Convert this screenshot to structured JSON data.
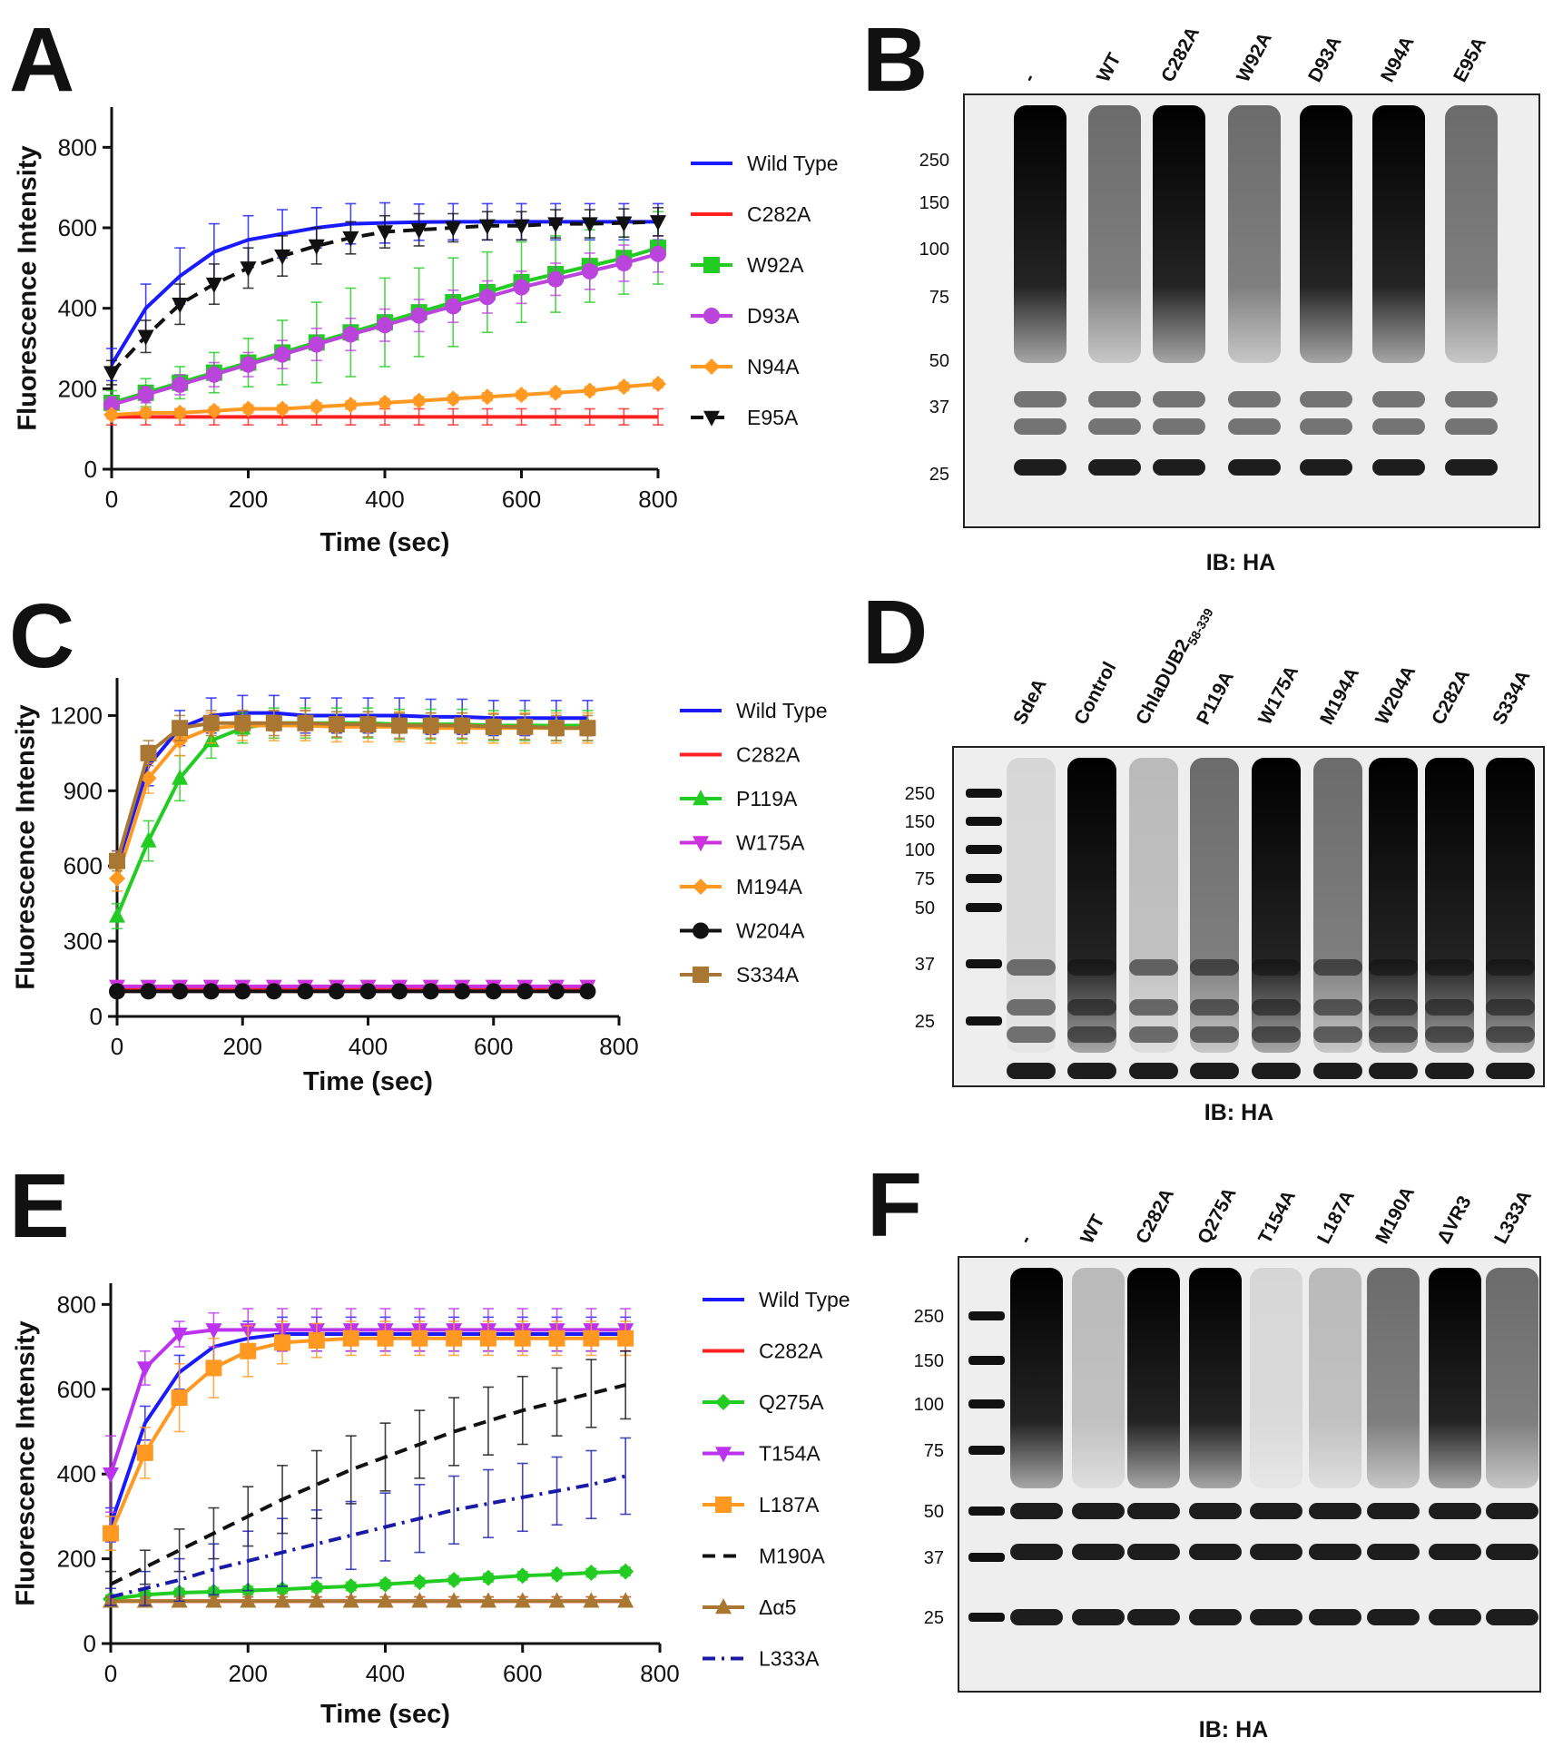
{
  "chart_data": [
    {
      "type": "line",
      "panel": "A",
      "y_label": "Fluorescence Intensity",
      "x_label": "Time (sec)",
      "x": [
        0,
        50,
        100,
        150,
        200,
        250,
        300,
        350,
        400,
        450,
        500,
        550,
        600,
        650,
        700,
        750,
        800
      ],
      "xlim": [
        0,
        800
      ],
      "xticks": [
        0,
        200,
        400,
        600,
        800
      ],
      "ylim": [
        0,
        900
      ],
      "yticks": [
        0,
        200,
        400,
        600,
        800
      ],
      "series": [
        {
          "name": "Wild Type",
          "color": "#1a1aff",
          "marker": "none",
          "dash": "solid",
          "values": [
            260,
            400,
            480,
            540,
            570,
            585,
            600,
            610,
            612,
            614,
            615,
            615,
            615,
            615,
            615,
            615,
            615
          ],
          "errors": [
            40,
            60,
            70,
            70,
            60,
            60,
            50,
            50,
            50,
            45,
            45,
            45,
            45,
            45,
            45,
            45,
            45
          ]
        },
        {
          "name": "C282A",
          "color": "#ff2020",
          "marker": "none",
          "dash": "solid",
          "values": [
            130,
            130,
            130,
            130,
            130,
            130,
            130,
            130,
            130,
            130,
            130,
            130,
            130,
            130,
            130,
            130,
            130
          ],
          "errors": [
            20,
            20,
            20,
            20,
            20,
            20,
            20,
            20,
            20,
            20,
            20,
            20,
            20,
            20,
            20,
            20,
            20
          ]
        },
        {
          "name": "W92A",
          "color": "#22cc22",
          "marker": "square",
          "dash": "solid",
          "values": [
            165,
            190,
            215,
            240,
            265,
            290,
            315,
            340,
            365,
            390,
            415,
            440,
            465,
            485,
            505,
            525,
            550
          ],
          "errors": [
            30,
            35,
            40,
            50,
            60,
            80,
            100,
            110,
            110,
            110,
            110,
            100,
            100,
            95,
            90,
            90,
            90
          ]
        },
        {
          "name": "D93A",
          "color": "#bb44dd",
          "marker": "circle",
          "dash": "solid",
          "values": [
            160,
            185,
            210,
            235,
            260,
            285,
            310,
            335,
            358,
            382,
            405,
            428,
            452,
            472,
            492,
            512,
            535
          ],
          "errors": [
            20,
            20,
            25,
            30,
            30,
            35,
            40,
            40,
            40,
            40,
            40,
            40,
            40,
            40,
            45,
            45,
            45
          ]
        },
        {
          "name": "N94A",
          "color": "#ff9922",
          "marker": "diamond",
          "dash": "solid",
          "values": [
            135,
            140,
            140,
            145,
            150,
            150,
            155,
            160,
            165,
            170,
            175,
            180,
            185,
            190,
            195,
            205,
            212
          ],
          "errors": [
            10,
            10,
            10,
            10,
            10,
            10,
            10,
            10,
            10,
            10,
            10,
            10,
            10,
            10,
            10,
            10,
            10
          ]
        },
        {
          "name": "E95A",
          "color": "#111111",
          "marker": "triangle-down",
          "dash": "dashed",
          "values": [
            240,
            330,
            410,
            460,
            500,
            530,
            555,
            575,
            590,
            595,
            600,
            605,
            605,
            610,
            610,
            612,
            615
          ],
          "errors": [
            30,
            40,
            50,
            50,
            50,
            50,
            45,
            40,
            40,
            40,
            35,
            35,
            35,
            35,
            35,
            35,
            35
          ]
        }
      ]
    },
    {
      "type": "line",
      "panel": "C",
      "y_label": "Fluorescence Intensity",
      "x_label": "Time (sec)",
      "x": [
        0,
        50,
        100,
        150,
        200,
        250,
        300,
        350,
        400,
        450,
        500,
        550,
        600,
        650,
        700,
        750
      ],
      "xlim": [
        0,
        800
      ],
      "xticks": [
        0,
        200,
        400,
        600,
        800
      ],
      "ylim": [
        0,
        1350
      ],
      "yticks": [
        0,
        300,
        600,
        900,
        1200
      ],
      "series": [
        {
          "name": "Wild Type",
          "color": "#1a1aff",
          "marker": "none",
          "dash": "solid",
          "values": [
            600,
            1000,
            1150,
            1200,
            1210,
            1210,
            1200,
            1200,
            1200,
            1200,
            1195,
            1195,
            1190,
            1190,
            1190,
            1190
          ],
          "errors": [
            60,
            80,
            70,
            70,
            70,
            70,
            70,
            70,
            70,
            70,
            70,
            70,
            70,
            70,
            70,
            70
          ]
        },
        {
          "name": "C282A",
          "color": "#ff2020",
          "marker": "none",
          "dash": "solid",
          "values": [
            110,
            110,
            110,
            110,
            110,
            110,
            110,
            110,
            110,
            110,
            110,
            110,
            110,
            110,
            110,
            110
          ],
          "errors": [
            15,
            15,
            15,
            15,
            15,
            15,
            15,
            15,
            15,
            15,
            15,
            15,
            15,
            15,
            15,
            15
          ]
        },
        {
          "name": "P119A",
          "color": "#22cc22",
          "marker": "triangle-up",
          "dash": "solid",
          "values": [
            400,
            700,
            950,
            1100,
            1150,
            1170,
            1170,
            1170,
            1170,
            1165,
            1165,
            1165,
            1160,
            1160,
            1160,
            1160
          ],
          "errors": [
            50,
            80,
            90,
            70,
            60,
            60,
            60,
            60,
            60,
            60,
            60,
            60,
            60,
            60,
            60,
            60
          ]
        },
        {
          "name": "W175A",
          "color": "#cc33dd",
          "marker": "triangle-down",
          "dash": "solid",
          "values": [
            120,
            120,
            120,
            120,
            120,
            120,
            120,
            120,
            120,
            120,
            120,
            120,
            120,
            120,
            120,
            120
          ],
          "errors": [
            15,
            15,
            15,
            15,
            15,
            15,
            15,
            15,
            15,
            15,
            15,
            15,
            15,
            15,
            15,
            15
          ]
        },
        {
          "name": "M194A",
          "color": "#ff9922",
          "marker": "diamond",
          "dash": "solid",
          "values": [
            550,
            950,
            1100,
            1150,
            1160,
            1160,
            1160,
            1155,
            1155,
            1155,
            1150,
            1150,
            1150,
            1150,
            1150,
            1150
          ],
          "errors": [
            50,
            60,
            60,
            60,
            60,
            60,
            60,
            60,
            60,
            60,
            60,
            60,
            60,
            60,
            60,
            60
          ]
        },
        {
          "name": "W204A",
          "color": "#111111",
          "marker": "circle",
          "dash": "solid",
          "values": [
            100,
            100,
            100,
            100,
            100,
            100,
            100,
            100,
            100,
            100,
            100,
            100,
            100,
            100,
            100,
            100
          ],
          "errors": [
            10,
            10,
            10,
            10,
            10,
            10,
            10,
            10,
            10,
            10,
            10,
            10,
            10,
            10,
            10,
            10
          ]
        },
        {
          "name": "S334A",
          "color": "#aa7733",
          "marker": "square",
          "dash": "solid",
          "values": [
            620,
            1050,
            1150,
            1170,
            1170,
            1170,
            1170,
            1165,
            1165,
            1160,
            1160,
            1160,
            1155,
            1155,
            1150,
            1150
          ],
          "errors": [
            40,
            50,
            50,
            50,
            50,
            50,
            50,
            50,
            50,
            50,
            50,
            50,
            50,
            50,
            50,
            50
          ]
        }
      ]
    },
    {
      "type": "line",
      "panel": "E",
      "y_label": "Fluorescence Intensity",
      "x_label": "Time (sec)",
      "x": [
        0,
        50,
        100,
        150,
        200,
        250,
        300,
        350,
        400,
        450,
        500,
        550,
        600,
        650,
        700,
        750
      ],
      "xlim": [
        0,
        800
      ],
      "xticks": [
        0,
        200,
        400,
        600,
        800
      ],
      "ylim": [
        0,
        850
      ],
      "yticks": [
        0,
        200,
        400,
        600,
        800
      ],
      "series": [
        {
          "name": "Wild Type",
          "color": "#1a1aff",
          "marker": "none",
          "dash": "solid",
          "values": [
            280,
            520,
            640,
            700,
            720,
            730,
            730,
            730,
            730,
            730,
            730,
            730,
            730,
            730,
            730,
            730
          ],
          "errors": [
            40,
            40,
            40,
            40,
            40,
            40,
            40,
            40,
            40,
            40,
            40,
            40,
            40,
            40,
            40,
            40
          ]
        },
        {
          "name": "C282A",
          "color": "#ff2020",
          "marker": "none",
          "dash": "solid",
          "values": [
            100,
            100,
            100,
            100,
            100,
            100,
            100,
            100,
            100,
            100,
            100,
            100,
            100,
            100,
            100,
            100
          ],
          "errors": [
            10,
            10,
            10,
            10,
            10,
            10,
            10,
            10,
            10,
            10,
            10,
            10,
            10,
            10,
            10,
            10
          ]
        },
        {
          "name": "Q275A",
          "color": "#22cc22",
          "marker": "diamond",
          "dash": "solid",
          "values": [
            105,
            115,
            120,
            122,
            125,
            128,
            132,
            135,
            140,
            145,
            150,
            155,
            160,
            163,
            167,
            170
          ],
          "errors": [
            10,
            10,
            10,
            10,
            10,
            10,
            10,
            10,
            10,
            10,
            10,
            10,
            10,
            10,
            10,
            10
          ]
        },
        {
          "name": "T154A",
          "color": "#bb33ee",
          "marker": "triangle-down",
          "dash": "solid",
          "values": [
            400,
            650,
            730,
            740,
            740,
            740,
            740,
            740,
            740,
            740,
            740,
            740,
            740,
            740,
            740,
            740
          ],
          "errors": [
            90,
            40,
            30,
            40,
            50,
            50,
            50,
            50,
            50,
            50,
            50,
            50,
            50,
            50,
            50,
            50
          ]
        },
        {
          "name": "L187A",
          "color": "#ff9922",
          "marker": "square",
          "dash": "solid",
          "values": [
            260,
            450,
            580,
            650,
            690,
            710,
            715,
            720,
            720,
            720,
            720,
            720,
            720,
            720,
            720,
            720
          ],
          "errors": [
            40,
            60,
            80,
            70,
            60,
            50,
            40,
            40,
            40,
            40,
            40,
            40,
            40,
            40,
            40,
            40
          ]
        },
        {
          "name": "M190A",
          "color": "#111111",
          "marker": "none",
          "dash": "dashed",
          "values": [
            140,
            180,
            220,
            260,
            300,
            340,
            375,
            410,
            440,
            470,
            500,
            525,
            550,
            570,
            590,
            610
          ],
          "errors": [
            30,
            40,
            50,
            60,
            70,
            80,
            80,
            80,
            80,
            80,
            80,
            80,
            80,
            80,
            80,
            80
          ]
        },
        {
          "name": "Δα5",
          "color": "#aa7733",
          "marker": "triangle-up",
          "dash": "solid",
          "values": [
            100,
            100,
            100,
            100,
            100,
            100,
            100,
            100,
            100,
            100,
            100,
            100,
            100,
            100,
            100,
            100
          ],
          "errors": [
            10,
            10,
            10,
            10,
            10,
            10,
            10,
            10,
            10,
            10,
            10,
            10,
            10,
            10,
            10,
            10
          ]
        },
        {
          "name": "L333A",
          "color": "#1a1aaa",
          "marker": "none",
          "dash": "dashdot",
          "values": [
            110,
            130,
            150,
            175,
            195,
            215,
            235,
            255,
            275,
            295,
            315,
            330,
            345,
            360,
            375,
            395
          ],
          "errors": [
            20,
            40,
            50,
            60,
            70,
            80,
            80,
            80,
            80,
            80,
            80,
            80,
            80,
            80,
            80,
            90
          ]
        }
      ]
    }
  ],
  "blots": [
    {
      "panel": "B",
      "lanes": [
        "-",
        "WT",
        "C282A",
        "W92A",
        "D93A",
        "N94A",
        "E95A"
      ],
      "markers": [
        250,
        150,
        100,
        75,
        50,
        37,
        25
      ],
      "caption": "IB: HA"
    },
    {
      "panel": "D",
      "lanes": [
        {
          "label": "SdeA"
        },
        {
          "label": "Control"
        },
        {
          "label": "ChlaDUB2",
          "subscript": "58-339"
        },
        {
          "label": "P119A"
        },
        {
          "label": "W175A"
        },
        {
          "label": "M194A"
        },
        {
          "label": "W204A"
        },
        {
          "label": "C282A"
        },
        {
          "label": "S334A"
        }
      ],
      "markers": [
        250,
        150,
        100,
        75,
        50,
        37,
        25
      ],
      "caption": "IB: HA"
    },
    {
      "panel": "F",
      "lanes": [
        "-",
        "WT",
        "C282A",
        "Q275A",
        "T154A",
        "L187A",
        "M190A",
        "ΔVR3",
        "L333A"
      ],
      "markers": [
        250,
        150,
        100,
        75,
        50,
        37,
        25
      ],
      "caption": "IB: HA"
    }
  ]
}
